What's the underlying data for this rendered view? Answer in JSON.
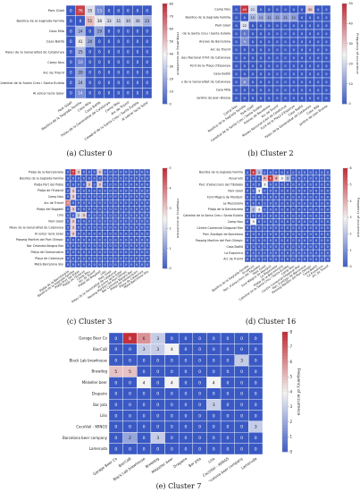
{
  "colors": {
    "low": "#3a59c4",
    "mid": "#f2f2f2",
    "high": "#c2303a",
    "grid": "#ffffff",
    "text": "#222222"
  },
  "colorbar_label": "Frequency of occurrence",
  "chart_data": [
    {
      "type": "heatmap",
      "caption": "(a) Cluster 0",
      "vmax": 80,
      "colorbar_ticks": [
        0,
        10,
        20,
        30,
        40,
        50,
        60,
        70,
        80
      ],
      "rows": [
        "Park Güell",
        "Basilica de la Sagrada Familia",
        "Casa Mila",
        "Casa Batlló",
        "Palau de la Generalitat de Catalunya",
        "Camp Nou",
        "Arc de Triomf",
        "Catedral de la Santa Creu i Santa Eulàlia",
        "Al solcer lacle Solar"
      ],
      "cols": [
        "Park Güell",
        "Basilica de la Sagrada Familia",
        "Casa Mila",
        "Casa Batlló",
        "Palau de la Generalitat de Catalunya",
        "Camp Nou",
        "Arc de Triomf",
        "Catedral de la Santa Creu i Santa Eulàlia",
        "Al solcer lacle Solar"
      ],
      "matrix": [
        [
          0,
          76,
          35,
          13,
          0,
          0,
          0,
          0,
          0
        ],
        [
          0,
          0,
          51,
          38,
          33,
          31,
          30,
          30,
          23
        ],
        [
          0,
          24,
          0,
          19,
          0,
          0,
          0,
          0,
          0
        ],
        [
          0,
          41,
          20,
          0,
          0,
          0,
          0,
          0,
          0
        ],
        [
          0,
          25,
          0,
          0,
          0,
          0,
          0,
          0,
          0
        ],
        [
          0,
          10,
          0,
          0,
          0,
          0,
          0,
          0,
          0
        ],
        [
          0,
          20,
          0,
          0,
          0,
          0,
          0,
          0,
          0
        ],
        [
          0,
          24,
          0,
          0,
          0,
          0,
          0,
          0,
          0
        ],
        [
          0,
          14,
          0,
          0,
          0,
          0,
          0,
          0,
          0
        ]
      ]
    },
    {
      "type": "heatmap",
      "caption": "(b) Cluster 2",
      "vmax": 50,
      "colorbar_ticks": [
        0,
        10,
        20,
        30,
        40,
        50
      ],
      "rows": [
        "Camp Nou",
        "Basilica de la Sagrada Familia",
        "Park Güell",
        "Catedral de la Santa Creu i Santa Eulàlia",
        "Arenas de Barcelona",
        "Arc de Triomf",
        "Museu Nacional d'Art de Catalunya",
        "Font de la Plaça d'Espanya",
        "Casa Batlló",
        "Palau de la Generalitat de Catalunya",
        "Casa Milà",
        "Jardins de Joan Brossa"
      ],
      "cols": [
        "Camp Nou",
        "Basilica de la Sagrada Familia",
        "Park Güell",
        "Catedral de la Santa Creu i Santa Eulàlia",
        "Arenas de Barcelona",
        "Arc de Triomf",
        "Museu Nacional d'Art de Catalunya",
        "Font de la Plaça d'Espanya",
        "Casa Batlló",
        "Palau de la Generalitat de Catalunya",
        "Casa Milà",
        "Jardins de Joan Brossa"
      ],
      "matrix": [
        [
          0,
          49,
          21,
          0,
          0,
          0,
          0,
          0,
          0,
          30,
          0,
          0
        ],
        [
          0,
          0,
          15,
          13,
          11,
          11,
          11,
          11,
          0,
          0,
          0,
          0
        ],
        [
          0,
          22,
          0,
          0,
          0,
          0,
          0,
          0,
          0,
          0,
          0,
          0
        ],
        [
          0,
          5,
          0,
          0,
          0,
          0,
          0,
          0,
          0,
          0,
          0,
          0
        ],
        [
          0,
          9,
          0,
          0,
          0,
          0,
          0,
          0,
          0,
          0,
          0,
          0
        ],
        [
          0,
          0,
          0,
          0,
          0,
          0,
          0,
          0,
          0,
          0,
          0,
          0
        ],
        [
          0,
          0,
          0,
          0,
          0,
          0,
          0,
          0,
          0,
          0,
          0,
          0
        ],
        [
          0,
          0,
          0,
          0,
          0,
          0,
          0,
          0,
          0,
          0,
          0,
          0
        ],
        [
          0,
          0,
          0,
          0,
          0,
          0,
          0,
          0,
          0,
          0,
          0,
          0
        ],
        [
          0,
          8,
          0,
          0,
          0,
          0,
          0,
          0,
          0,
          0,
          0,
          0
        ],
        [
          0,
          0,
          0,
          0,
          0,
          0,
          0,
          0,
          0,
          0,
          0,
          0
        ],
        [
          0,
          0,
          0,
          0,
          0,
          0,
          0,
          0,
          0,
          0,
          0,
          0
        ]
      ]
    },
    {
      "type": "heatmap",
      "caption": "(c) Cluster 3",
      "vmax": 5,
      "colorbar_ticks": [
        0,
        1,
        2,
        3,
        4,
        5
      ],
      "rows": [
        "Platja de la Barceloneta",
        "Basilica de la Sagrada Família",
        "Platja Port del Poble",
        "Platja de l'Estació",
        "Camp Nou",
        "Arc de Triomf",
        "Platja del Bogatell",
        "Lilio",
        "Park Güell",
        "Palau de la Generalitat de Catalunya",
        "Al solcer lacle Solar",
        "Passeig Marítim del Port Olímpic",
        "Bar Celoneta Bargna Bar",
        "Platja del Somorrostro",
        "Plaça de Catalunya",
        "Matá Barcelona Sky"
      ],
      "cols": [
        "Platja de la Barceloneta",
        "Basilica de la Sagrada Família",
        "Platja Port del Poble",
        "Platja de l'Estació",
        "Camp Nou",
        "Arc de Triomf",
        "Platja del Bogatell",
        "Lilio",
        "Park Güell",
        "Palau de la Generalitat de Catalunya",
        "Al solcer lacle Solar",
        "Passeig Marítim del Port Olímpic",
        "Bar Celoneta Bargna Bar",
        "Platja del Somorrostro",
        "Plaça de Catalunya",
        "Matá Barcelona Sky"
      ],
      "matrix": [
        [
          0,
          5,
          3,
          0,
          0,
          0,
          3,
          0,
          0,
          0,
          0,
          0,
          0,
          0,
          0,
          0
        ],
        [
          0,
          0,
          0,
          0,
          0,
          0,
          0,
          0,
          0,
          0,
          0,
          0,
          0,
          0,
          0,
          0
        ],
        [
          0,
          0,
          0,
          0,
          3,
          0,
          3,
          0,
          0,
          0,
          0,
          0,
          0,
          0,
          0,
          0
        ],
        [
          0,
          3,
          0,
          0,
          0,
          0,
          0,
          0,
          0,
          0,
          0,
          0,
          0,
          0,
          0,
          0
        ],
        [
          0,
          3,
          0,
          0,
          0,
          0,
          0,
          0,
          0,
          0,
          0,
          0,
          0,
          0,
          0,
          0
        ],
        [
          4,
          0,
          0,
          0,
          0,
          0,
          0,
          0,
          0,
          0,
          0,
          0,
          0,
          0,
          0,
          0
        ],
        [
          0,
          3,
          0,
          0,
          0,
          0,
          0,
          0,
          0,
          0,
          0,
          0,
          0,
          0,
          0,
          0
        ],
        [
          0,
          0,
          2,
          3,
          0,
          0,
          0,
          0,
          0,
          0,
          0,
          0,
          0,
          0,
          0,
          0
        ],
        [
          0,
          3,
          0,
          0,
          0,
          0,
          0,
          0,
          0,
          0,
          0,
          0,
          0,
          0,
          0,
          0
        ],
        [
          0,
          3,
          0,
          0,
          0,
          0,
          0,
          0,
          0,
          0,
          0,
          0,
          0,
          0,
          0,
          0
        ],
        [
          0,
          3,
          0,
          0,
          0,
          0,
          0,
          0,
          0,
          0,
          0,
          0,
          0,
          0,
          0,
          0
        ],
        [
          0,
          0,
          0,
          0,
          0,
          0,
          0,
          0,
          0,
          0,
          0,
          0,
          0,
          0,
          0,
          0
        ],
        [
          0,
          0,
          0,
          0,
          0,
          0,
          0,
          0,
          0,
          0,
          0,
          0,
          0,
          0,
          0,
          0
        ],
        [
          0,
          0,
          0,
          0,
          0,
          0,
          0,
          0,
          0,
          0,
          0,
          0,
          0,
          0,
          0,
          0
        ],
        [
          0,
          0,
          0,
          0,
          0,
          0,
          0,
          0,
          0,
          0,
          0,
          0,
          0,
          0,
          0,
          0
        ],
        [
          0,
          0,
          0,
          0,
          0,
          0,
          0,
          0,
          0,
          0,
          0,
          0,
          0,
          0,
          0,
          0
        ]
      ]
    },
    {
      "type": "heatmap",
      "caption": "(d) Cluster 16",
      "vmax": 6,
      "colorbar_ticks": [
        0,
        1,
        2,
        3,
        4,
        5,
        6
      ],
      "rows": [
        "Basilica de la Sagrada Família",
        "Acuarium",
        "Parc d'atraccions del Tibidabo",
        "Park Güell",
        "Font Màgica de Montjuïc",
        "La Mazzorella",
        "Platja de la Barceloneta",
        "Catedral de la Santa Creu i Santa Eulàlia",
        "Camp Nou",
        "Centre Comercial Diagonal Mar",
        "Parc Zoològic de Barcelona",
        "Passeig Marítim del Port Olímpic",
        "Casa Batlló",
        "La Esquinica",
        "Arc de Triomf"
      ],
      "cols": [
        "Basilica de la Sagrada Família",
        "Acuarium",
        "Parc d'atraccions del Tibidabo",
        "Park Güell",
        "Font Màgica de Montjuïc",
        "La Mazzorella",
        "Platja de la Barceloneta",
        "Catedral de la Santa Creu i Santa Eulàlia",
        "Camp Nou",
        "Centre Comercial Diagonal Mar",
        "Parc Zoològic de Barcelona",
        "Passeig Marítim del Port Olímpic",
        "Casa Batlló",
        "La Esquinica",
        "Arc de Triomf"
      ],
      "matrix": [
        [
          0,
          6,
          2,
          0,
          0,
          0,
          0,
          0,
          0,
          0,
          0,
          0,
          0,
          0,
          0
        ],
        [
          0,
          0,
          0,
          4,
          6,
          4,
          3,
          2,
          0,
          0,
          0,
          0,
          0,
          0,
          0
        ],
        [
          0,
          0,
          0,
          3,
          0,
          0,
          0,
          0,
          0,
          0,
          0,
          0,
          0,
          0,
          0
        ],
        [
          0,
          0,
          3,
          0,
          0,
          0,
          0,
          0,
          0,
          0,
          0,
          0,
          0,
          0,
          0
        ],
        [
          0,
          0,
          0,
          0,
          0,
          0,
          0,
          0,
          0,
          0,
          0,
          0,
          0,
          0,
          0
        ],
        [
          0,
          0,
          0,
          0,
          0,
          0,
          0,
          0,
          0,
          0,
          0,
          0,
          0,
          0,
          0
        ],
        [
          0,
          2,
          3,
          0,
          0,
          0,
          0,
          0,
          0,
          0,
          0,
          0,
          0,
          0,
          0
        ],
        [
          0,
          0,
          0,
          0,
          0,
          0,
          0,
          0,
          0,
          0,
          0,
          0,
          0,
          0,
          0
        ],
        [
          0,
          3,
          0,
          0,
          0,
          0,
          0,
          0,
          0,
          0,
          0,
          0,
          0,
          0,
          0
        ],
        [
          0,
          0,
          0,
          0,
          0,
          0,
          0,
          0,
          0,
          0,
          0,
          0,
          0,
          0,
          0
        ],
        [
          0,
          0,
          0,
          0,
          0,
          0,
          0,
          0,
          0,
          0,
          0,
          0,
          0,
          0,
          0
        ],
        [
          0,
          0,
          0,
          0,
          0,
          0,
          0,
          0,
          0,
          0,
          0,
          0,
          0,
          0,
          0
        ],
        [
          0,
          0,
          0,
          0,
          0,
          0,
          0,
          0,
          0,
          0,
          0,
          0,
          0,
          0,
          0
        ],
        [
          0,
          0,
          0,
          0,
          0,
          0,
          0,
          0,
          0,
          0,
          0,
          0,
          0,
          0,
          0
        ],
        [
          0,
          0,
          0,
          0,
          0,
          0,
          0,
          0,
          0,
          0,
          0,
          0,
          0,
          0,
          0
        ]
      ]
    },
    {
      "type": "heatmap",
      "caption": "(e) Cluster 7",
      "vmax": 8,
      "colorbar_ticks": [
        0,
        1,
        2,
        3,
        4,
        5,
        6,
        7,
        8
      ],
      "rows": [
        "Garage Beer Co",
        "BierCaB",
        "Black Lab brewhouse",
        "Brewdog",
        "Mikkeller beer",
        "Drapaire",
        "Bar Jota",
        "Lilio",
        "CocoVail - WINGS",
        "Barcelona beer company",
        "Lameruda"
      ],
      "cols": [
        "Garage Beer Co",
        "BierCaB",
        "Black Lab brewhouse",
        "Brewdog",
        "Mikkeller beer",
        "Drapaire",
        "Bar Jota",
        "Lilio",
        "CocoVail - WINGS",
        "Barcelona beer company",
        "Lameruda"
      ],
      "matrix": [
        [
          0,
          8,
          6,
          3,
          0,
          0,
          0,
          0,
          0,
          0,
          0
        ],
        [
          0,
          0,
          3,
          3,
          4,
          0,
          0,
          0,
          0,
          0,
          0
        ],
        [
          0,
          0,
          0,
          0,
          0,
          0,
          0,
          0,
          0,
          3,
          0
        ],
        [
          5,
          5,
          0,
          0,
          0,
          0,
          0,
          0,
          0,
          0,
          0
        ],
        [
          0,
          0,
          4,
          0,
          4,
          0,
          0,
          4,
          0,
          0,
          0
        ],
        [
          0,
          0,
          0,
          0,
          0,
          0,
          0,
          0,
          0,
          0,
          0
        ],
        [
          0,
          0,
          0,
          0,
          0,
          0,
          0,
          3,
          0,
          0,
          0
        ],
        [
          0,
          0,
          0,
          0,
          0,
          0,
          0,
          0,
          0,
          0,
          0
        ],
        [
          0,
          0,
          0,
          0,
          0,
          0,
          0,
          0,
          0,
          0,
          3
        ],
        [
          0,
          2,
          0,
          3,
          0,
          0,
          0,
          0,
          0,
          0,
          0
        ],
        [
          0,
          0,
          0,
          0,
          0,
          0,
          0,
          0,
          0,
          0,
          0
        ]
      ]
    }
  ]
}
